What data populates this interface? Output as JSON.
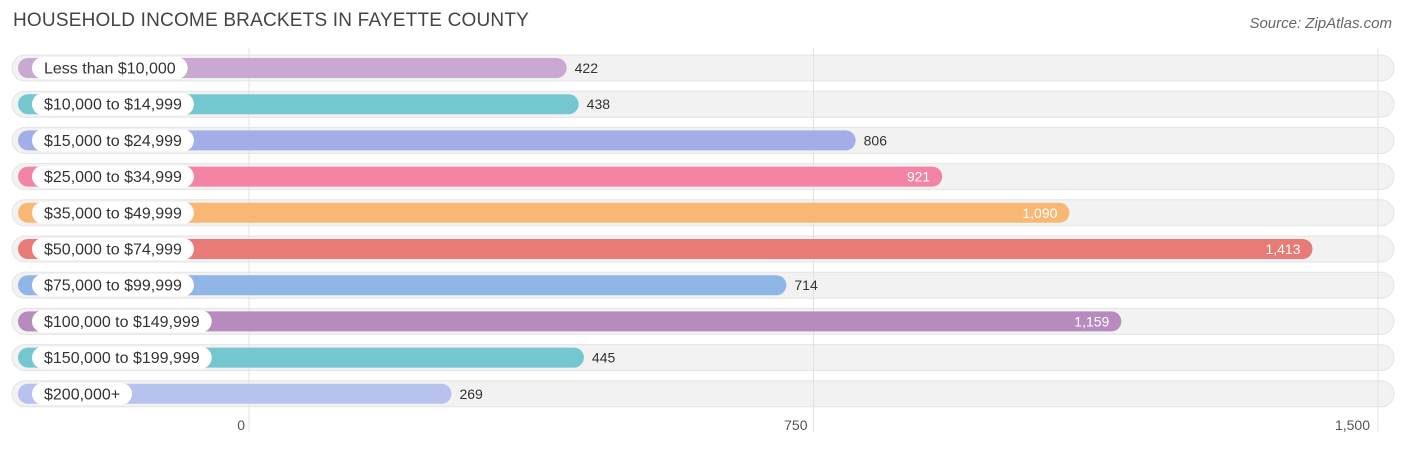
{
  "title": "HOUSEHOLD INCOME BRACKETS IN FAYETTE COUNTY",
  "source": "Source: ZipAtlas.com",
  "chart_data": {
    "type": "bar",
    "orientation": "horizontal",
    "title": "HOUSEHOLD INCOME BRACKETS IN FAYETTE COUNTY",
    "categories": [
      "Less than $10,000",
      "$10,000 to $14,999",
      "$15,000 to $24,999",
      "$25,000 to $34,999",
      "$35,000 to $49,999",
      "$50,000 to $74,999",
      "$75,000 to $99,999",
      "$100,000 to $149,999",
      "$150,000 to $199,999",
      "$200,000+"
    ],
    "values": [
      422,
      438,
      806,
      921,
      1090,
      1413,
      714,
      1159,
      445,
      269
    ],
    "value_labels": [
      "422",
      "438",
      "806",
      "921",
      "1,090",
      "1,413",
      "714",
      "1,159",
      "445",
      "269"
    ],
    "colors": [
      "#c9a8d2",
      "#74c6cf",
      "#a3aee8",
      "#f384a6",
      "#f9b774",
      "#e87b76",
      "#8fb6e6",
      "#b88bbf",
      "#74c6cf",
      "#b7c2ee"
    ],
    "xlim": [
      0,
      1500
    ],
    "xticks": [
      0,
      750,
      1500
    ],
    "xtick_labels": [
      "0",
      "750",
      "1,500"
    ],
    "grid": true
  }
}
